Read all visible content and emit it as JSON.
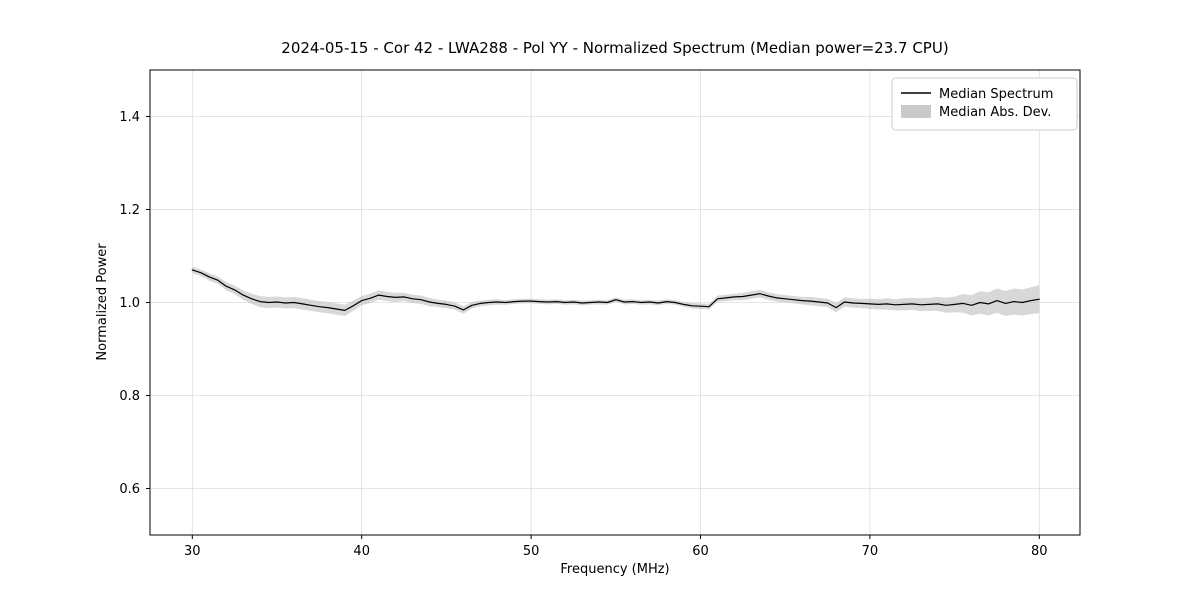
{
  "chart_data": {
    "type": "line",
    "title": "2024-05-15 - Cor 42 - LWA288 - Pol YY - Normalized Spectrum (Median power=23.7 CPU)",
    "xlabel": "Frequency (MHz)",
    "ylabel": "Normalized Power",
    "xlim": [
      27.5,
      82.4
    ],
    "ylim": [
      0.5,
      1.5
    ],
    "x_ticks": [
      30,
      40,
      50,
      60,
      70,
      80
    ],
    "y_ticks": [
      0.6,
      0.8,
      1.0,
      1.2,
      1.4
    ],
    "grid": true,
    "legend_position": "upper right",
    "x": [
      30,
      30.5,
      31,
      31.5,
      32,
      32.5,
      33,
      33.5,
      34,
      34.5,
      35,
      35.5,
      36,
      36.5,
      37,
      37.5,
      38,
      38.5,
      39,
      39.5,
      40,
      40.5,
      41,
      41.5,
      42,
      42.5,
      43,
      43.5,
      44,
      44.5,
      45,
      45.5,
      46,
      46.5,
      47,
      47.5,
      48,
      48.5,
      49,
      49.5,
      50,
      50.5,
      51,
      51.5,
      52,
      52.5,
      53,
      53.5,
      54,
      54.5,
      55,
      55.5,
      56,
      56.5,
      57,
      57.5,
      58,
      58.5,
      59,
      59.5,
      60,
      60.5,
      61,
      61.5,
      62,
      62.5,
      63,
      63.5,
      64,
      64.5,
      65,
      65.5,
      66,
      66.5,
      67,
      67.5,
      68,
      68.5,
      69,
      69.5,
      70,
      70.5,
      71,
      71.5,
      72,
      72.5,
      73,
      73.5,
      74,
      74.5,
      75,
      75.5,
      76,
      76.5,
      77,
      77.5,
      78,
      78.5,
      79,
      79.5,
      80
    ],
    "series": [
      {
        "name": "Median Spectrum",
        "style": "line",
        "color": "#000000",
        "values": [
          1.07,
          1.064,
          1.055,
          1.048,
          1.035,
          1.027,
          1.016,
          1.008,
          1.002,
          1.0,
          1.001,
          0.999,
          1.0,
          0.997,
          0.994,
          0.991,
          0.989,
          0.986,
          0.983,
          0.993,
          1.004,
          1.009,
          1.016,
          1.013,
          1.011,
          1.012,
          1.008,
          1.006,
          1.001,
          0.998,
          0.996,
          0.992,
          0.984,
          0.994,
          0.998,
          1.0,
          1.001,
          1.0,
          1.002,
          1.003,
          1.003,
          1.002,
          1.001,
          1.002,
          1.0,
          1.001,
          0.999,
          1.0,
          1.001,
          1.0,
          1.006,
          1.001,
          1.002,
          1.0,
          1.001,
          0.999,
          1.002,
          1.0,
          0.996,
          0.993,
          0.992,
          0.991,
          1.008,
          1.01,
          1.012,
          1.013,
          1.016,
          1.019,
          1.014,
          1.01,
          1.008,
          1.006,
          1.004,
          1.003,
          1.001,
          0.999,
          0.989,
          1.001,
          0.999,
          0.998,
          0.997,
          0.996,
          0.997,
          0.995,
          0.996,
          0.997,
          0.995,
          0.996,
          0.997,
          0.994,
          0.996,
          0.998,
          0.994,
          1.0,
          0.997,
          1.004,
          0.998,
          1.002,
          1.0,
          1.004,
          1.007
        ]
      },
      {
        "name": "Median Abs. Dev.",
        "style": "band",
        "color": "#c8c8c8",
        "half_widths": [
          0.007,
          0.007,
          0.008,
          0.008,
          0.009,
          0.009,
          0.01,
          0.011,
          0.012,
          0.012,
          0.012,
          0.012,
          0.012,
          0.012,
          0.012,
          0.012,
          0.012,
          0.012,
          0.012,
          0.011,
          0.01,
          0.01,
          0.01,
          0.01,
          0.01,
          0.009,
          0.009,
          0.009,
          0.009,
          0.008,
          0.008,
          0.008,
          0.008,
          0.007,
          0.006,
          0.006,
          0.006,
          0.005,
          0.005,
          0.005,
          0.005,
          0.005,
          0.005,
          0.005,
          0.005,
          0.005,
          0.005,
          0.005,
          0.005,
          0.005,
          0.005,
          0.005,
          0.005,
          0.005,
          0.005,
          0.005,
          0.005,
          0.005,
          0.005,
          0.006,
          0.006,
          0.006,
          0.007,
          0.007,
          0.007,
          0.008,
          0.008,
          0.008,
          0.008,
          0.008,
          0.008,
          0.008,
          0.008,
          0.009,
          0.009,
          0.009,
          0.01,
          0.01,
          0.01,
          0.01,
          0.011,
          0.011,
          0.012,
          0.012,
          0.013,
          0.013,
          0.014,
          0.014,
          0.015,
          0.016,
          0.017,
          0.02,
          0.022,
          0.024,
          0.025,
          0.026,
          0.027,
          0.028,
          0.028,
          0.029,
          0.03
        ]
      }
    ]
  },
  "legend": {
    "entries": [
      {
        "label": "Median Spectrum",
        "swatch": "line-swatch-icon"
      },
      {
        "label": "Median Abs. Dev.",
        "swatch": "patch-swatch-icon"
      }
    ]
  }
}
